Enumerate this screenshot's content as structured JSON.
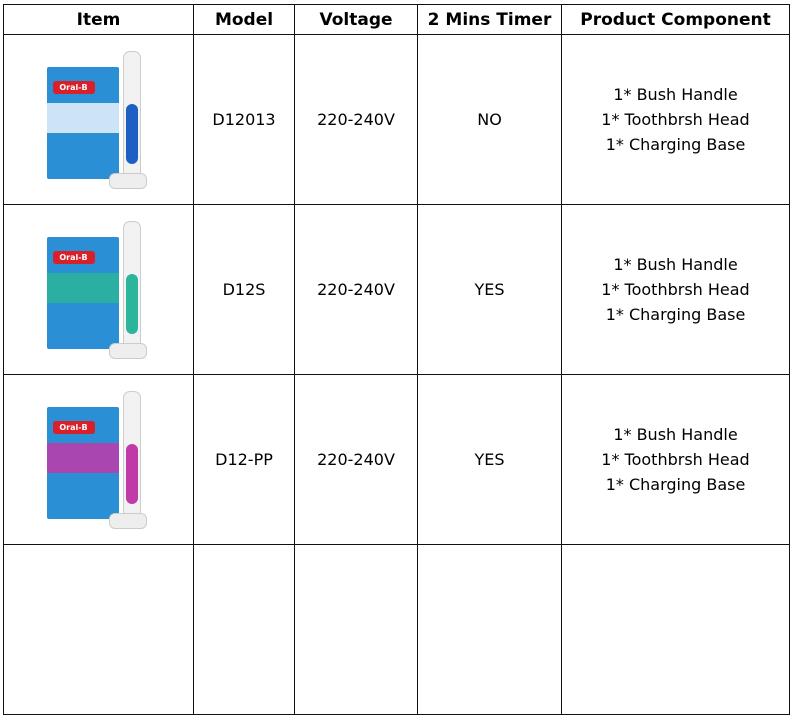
{
  "headers": [
    "Item",
    "Model",
    "Voltage",
    "2 Mins Timer",
    "Product Component"
  ],
  "rows": [
    {
      "image": "Oral-B Vitality toothbrush, blue",
      "brand": "Oral-B",
      "box_color": "#2a8fd4",
      "accent": "#1d5fc2",
      "model": "D12013",
      "voltage": "220-240V",
      "timer": "NO",
      "components": [
        "1* Bush Handle",
        "1* Toothbrsh Head",
        "1* Charging Base"
      ]
    },
    {
      "image": "Oral-B Vitality toothbrush, green",
      "brand": "Oral-B",
      "box_color": "#2a8fd4",
      "accent": "#2bb59a",
      "model": "D12S",
      "voltage": "220-240V",
      "timer": "YES",
      "components": [
        "1* Bush Handle",
        "1* Toothbrsh Head",
        "1* Charging Base"
      ]
    },
    {
      "image": "Oral-B Vitality toothbrush, pink",
      "brand": "Oral-B",
      "box_color": "#2a8fd4",
      "accent": "#c03aa8",
      "model": "D12-PP",
      "voltage": "220-240V",
      "timer": "YES",
      "components": [
        "1* Bush Handle",
        "1* Toothbrsh Head",
        "1* Charging Base"
      ]
    }
  ]
}
